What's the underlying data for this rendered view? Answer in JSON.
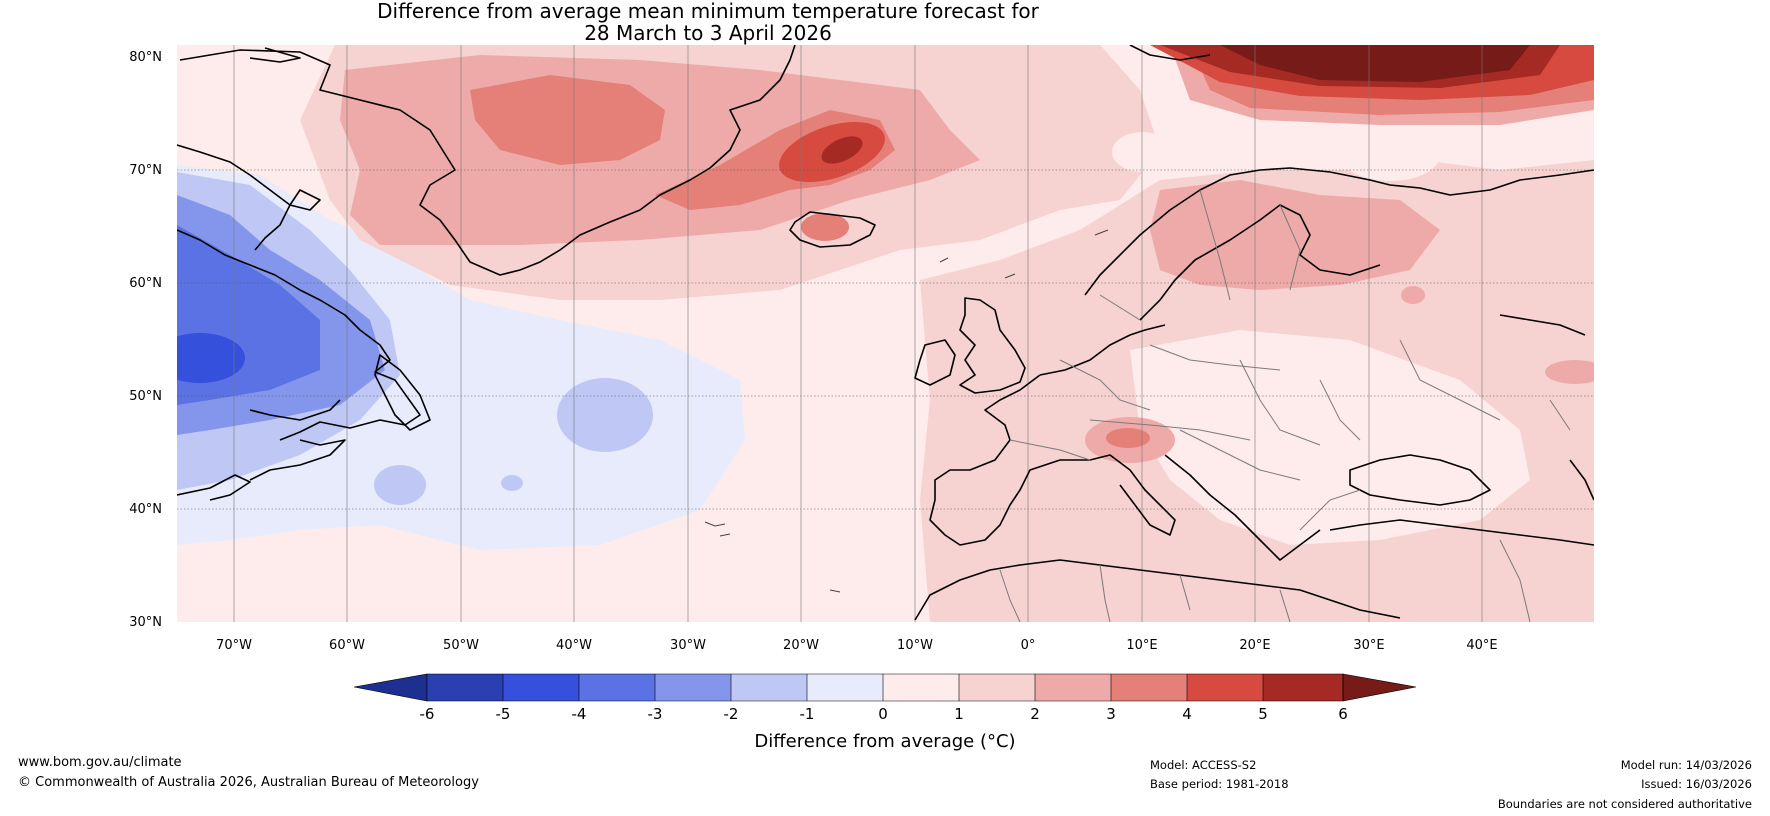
{
  "title": {
    "line1": "Difference from average mean minimum temperature forecast for",
    "line2": "28 March to 3 April 2026"
  },
  "map": {
    "lat_labels": [
      "80°N",
      "70°N",
      "60°N",
      "50°N",
      "40°N",
      "30°N"
    ],
    "lon_labels": [
      "70°W",
      "60°W",
      "50°W",
      "40°W",
      "30°W",
      "20°W",
      "10°W",
      "0°",
      "10°E",
      "20°E",
      "30°E",
      "40°E"
    ],
    "lon_range": [
      -75,
      50
    ],
    "lat_range": [
      30,
      81
    ]
  },
  "colorbar": {
    "ticks": [
      "-6",
      "-5",
      "-4",
      "-3",
      "-2",
      "-1",
      "0",
      "1",
      "2",
      "3",
      "4",
      "5",
      "6"
    ],
    "colors": [
      "#1e2f92",
      "#2a3fb0",
      "#3450dc",
      "#5b72e4",
      "#8496ec",
      "#bfc8f5",
      "#e8ebfb",
      "#fdeceb",
      "#f6d2d1",
      "#eeaaa8",
      "#e48078",
      "#d64a40",
      "#a52a24",
      "#761b17"
    ],
    "label": "Difference from average (°C)"
  },
  "colors": {
    "neutral_warm": "#fdeceb",
    "slight_warm": "#f6d2d1",
    "warm": "#eeaaa8",
    "warmer": "#e48078",
    "hot": "#d64a40",
    "very_hot": "#a52a24",
    "extreme_hot": "#761b17",
    "slight_cool": "#e8ebfb",
    "cool": "#bfc8f5",
    "cooler": "#8496ec",
    "cold": "#5b72e4",
    "very_cold": "#3450dc"
  },
  "footer": {
    "website": "www.bom.gov.au/climate",
    "copyright": "© Commonwealth of Australia 2026, Australian Bureau of Meteorology",
    "model": "Model: ACCESS-S2",
    "base_period": "Base period: 1981-2018",
    "model_run": "Model run: 14/03/2026",
    "issued": "Issued: 16/03/2026",
    "disclaimer": "Boundaries are not considered authoritative"
  }
}
